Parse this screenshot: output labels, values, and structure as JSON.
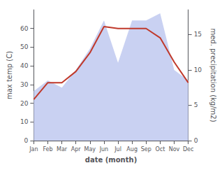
{
  "chart_data": {
    "type": "line",
    "xlabel": "date (month)",
    "ylabel": "max temp (C)",
    "y2label": "med. precipitation (kg/m2)",
    "categories": [
      "Jan",
      "Feb",
      "Mar",
      "Apr",
      "May",
      "Jun",
      "Jul",
      "Aug",
      "Sep",
      "Oct",
      "Nov",
      "Dec"
    ],
    "series": [
      {
        "type": "area",
        "axis": "y2",
        "color": "#bfc9f0",
        "values": [
          7,
          8.5,
          7.5,
          10,
          13,
          17,
          11,
          17,
          17,
          18,
          10,
          8.5
        ]
      },
      {
        "type": "line",
        "color": "#c0392b",
        "values": [
          22,
          31,
          31,
          37,
          47,
          61,
          60,
          60,
          60,
          55,
          42,
          31
        ]
      }
    ],
    "ylim": [
      0,
      70
    ],
    "yticks": [
      0,
      10,
      20,
      30,
      40,
      50,
      60
    ],
    "y2lim": [
      0,
      18.5
    ],
    "y2ticks": [
      0,
      5,
      10,
      15
    ],
    "grid": false
  }
}
